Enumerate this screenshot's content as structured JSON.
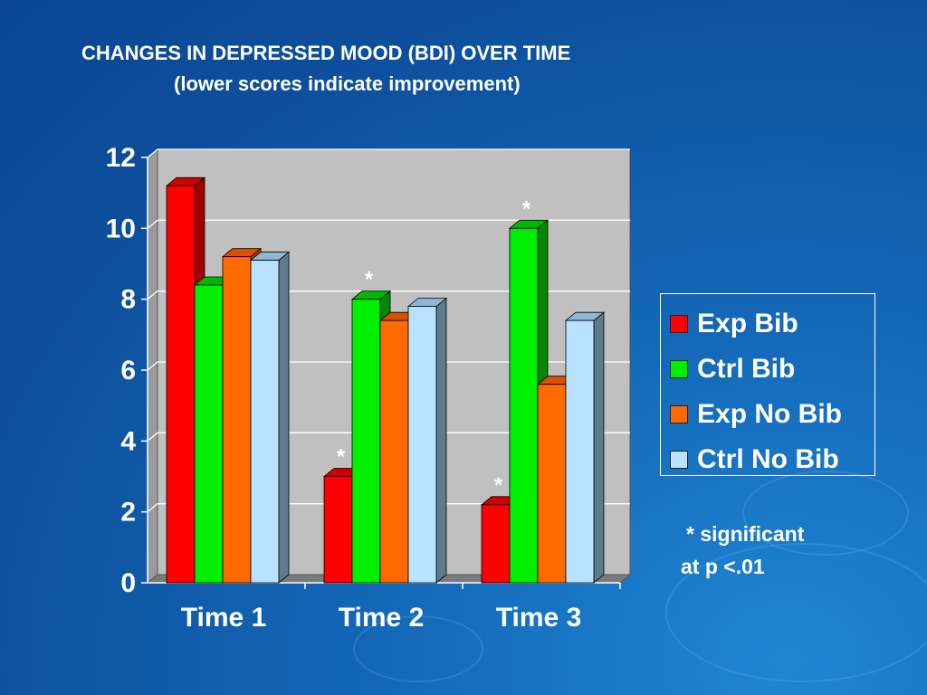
{
  "title_line1": "CHANGES IN DEPRESSED MOOD (BDI) OVER TIME",
  "title_line2": "(lower scores indicate improvement)",
  "note_line1": "* significant",
  "note_line2": "at p <.01",
  "chart_data": {
    "type": "bar",
    "categories": [
      "Time 1",
      "Time 2",
      "Time 3"
    ],
    "series": [
      {
        "name": "Exp Bib",
        "values": [
          11.2,
          3.0,
          2.2
        ],
        "color": "#ff0000",
        "side": "#a00000",
        "top": "#d00000"
      },
      {
        "name": "Ctrl Bib",
        "values": [
          8.4,
          8.0,
          10.0
        ],
        "color": "#00ee00",
        "side": "#008a00",
        "top": "#00b800"
      },
      {
        "name": "Exp No Bib",
        "values": [
          9.2,
          7.4,
          5.6
        ],
        "color": "#ff6a00",
        "side": "#b04000",
        "top": "#d85000"
      },
      {
        "name": "Ctrl No Bib",
        "values": [
          9.1,
          7.8,
          7.4
        ],
        "color": "#b8e2ff",
        "side": "#5f7a8c",
        "top": "#8fb6d4"
      }
    ],
    "ylim": [
      0,
      12
    ],
    "yticks": [
      0,
      2,
      4,
      6,
      8,
      10,
      12
    ],
    "ytick_labels": [
      "0",
      "2",
      "4",
      "6",
      "8",
      "10",
      "12"
    ],
    "significance_marker": "*",
    "significant": [
      {
        "category": "Time 2",
        "series": "Exp Bib"
      },
      {
        "category": "Time 2",
        "series": "Ctrl Bib"
      },
      {
        "category": "Time 3",
        "series": "Exp Bib"
      },
      {
        "category": "Time 3",
        "series": "Ctrl Bib"
      }
    ],
    "grid": true,
    "legend_position": "right",
    "plot_background": "#c0c0c0"
  }
}
